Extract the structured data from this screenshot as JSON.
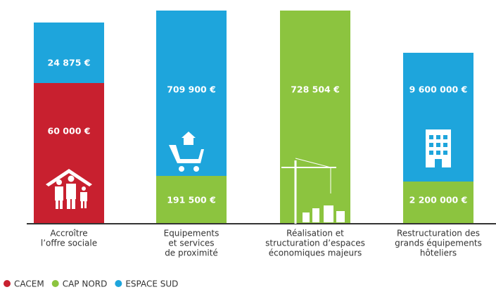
{
  "infographic": {
    "legend": [
      {
        "name": "CACEM",
        "color": "#c8202f"
      },
      {
        "name": "CAP NORD",
        "color": "#8cc43f"
      },
      {
        "name": "ESPACE SUD",
        "color": "#1ea5dc"
      }
    ],
    "items": [
      {
        "label": [
          "Accroître",
          "l’offre sociale"
        ],
        "segments": [
          {
            "amount": "24 875 €",
            "color": "#1ea5dc"
          },
          {
            "amount": "60 000 €",
            "color": "#c8202f"
          }
        ]
      },
      {
        "label": [
          "Equipements",
          "et services",
          "de proximité"
        ],
        "segments": [
          {
            "amount": "709 900 €",
            "color": "#1ea5dc"
          },
          {
            "amount": "191 500 €",
            "color": "#8cc43f"
          }
        ]
      },
      {
        "label": [
          "Réalisation et",
          "structuration d’espaces",
          "économiques majeurs"
        ],
        "segments": [
          {
            "amount": "728 504 €",
            "color": "#8cc43f"
          }
        ]
      },
      {
        "label": [
          "Restructuration des",
          "grands équipements",
          "hôteliers"
        ],
        "segments": [
          {
            "amount": "9 600 000 €",
            "color": "#1ea5dc"
          },
          {
            "amount": "2 200 000 €",
            "color": "#8cc43f"
          }
        ]
      }
    ]
  }
}
